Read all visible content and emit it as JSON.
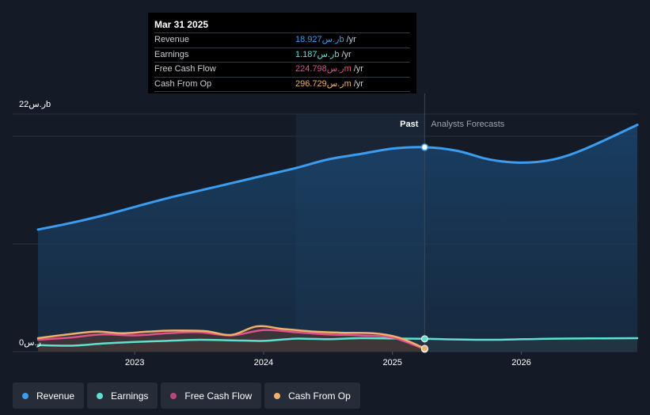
{
  "tooltip": {
    "date": "Mar 31 2025",
    "rows": [
      {
        "label": "Revenue",
        "value": "18.927ر.سb",
        "unit": "/yr",
        "color": "#3b9cf0"
      },
      {
        "label": "Earnings",
        "value": "1.187ر.سb",
        "unit": "/yr",
        "color": "#5fe0d0"
      },
      {
        "label": "Free Cash Flow",
        "value": "224.798ر.سm",
        "unit": "/yr",
        "color": "#e0508e"
      },
      {
        "label": "Cash From Op",
        "value": "296.729ر.سm",
        "unit": "/yr",
        "color": "#f0b06a"
      }
    ]
  },
  "chart_data": {
    "type": "area",
    "y_top_label": "22ر.سb",
    "y_bottom_label": "0ر.س",
    "ylim": [
      0,
      22
    ],
    "xlim": [
      2022.25,
      2026.9
    ],
    "past_label": "Past",
    "forecast_label": "Analysts Forecasts",
    "divider_x": 2025.25,
    "past_region_start": 2024.25,
    "x_ticks": [
      {
        "value": 2023,
        "label": "2023"
      },
      {
        "value": 2024,
        "label": "2024"
      },
      {
        "value": 2025,
        "label": "2025"
      },
      {
        "value": 2026,
        "label": "2026"
      }
    ],
    "series": [
      {
        "name": "Revenue",
        "color": "#3b9cf0",
        "x": [
          2022.25,
          2022.5,
          2022.75,
          2023.0,
          2023.25,
          2023.5,
          2023.75,
          2024.0,
          2024.25,
          2024.5,
          2024.75,
          2025.0,
          2025.25,
          2025.5,
          2025.75,
          2026.0,
          2026.25,
          2026.5,
          2026.9
        ],
        "values": [
          11.3,
          11.9,
          12.6,
          13.4,
          14.2,
          14.9,
          15.6,
          16.3,
          17.0,
          17.8,
          18.3,
          18.8,
          18.93,
          18.6,
          17.8,
          17.5,
          17.8,
          18.8,
          21.0
        ]
      },
      {
        "name": "Earnings",
        "color": "#5fe0d0",
        "x": [
          2022.25,
          2022.5,
          2022.75,
          2023.0,
          2023.25,
          2023.5,
          2023.75,
          2024.0,
          2024.25,
          2024.5,
          2024.75,
          2025.0,
          2025.25,
          2025.75,
          2026.25,
          2026.9
        ],
        "values": [
          0.6,
          0.55,
          0.75,
          0.9,
          1.0,
          1.1,
          1.05,
          1.0,
          1.2,
          1.15,
          1.25,
          1.22,
          1.187,
          1.1,
          1.2,
          1.25
        ]
      },
      {
        "name": "Free Cash Flow",
        "color": "#e0508e",
        "x": [
          2022.25,
          2022.5,
          2022.75,
          2023.0,
          2023.25,
          2023.5,
          2023.75,
          2024.0,
          2024.25,
          2024.5,
          2024.75,
          2025.0,
          2025.25
        ],
        "values": [
          1.1,
          1.3,
          1.6,
          1.5,
          1.7,
          1.8,
          1.5,
          2.0,
          1.8,
          1.6,
          1.5,
          1.3,
          0.225
        ]
      },
      {
        "name": "Cash From Op",
        "color": "#f0b06a",
        "x": [
          2022.25,
          2022.45,
          2022.7,
          2022.9,
          2023.1,
          2023.3,
          2023.55,
          2023.75,
          2023.95,
          2024.15,
          2024.4,
          2024.6,
          2024.85,
          2025.05,
          2025.25
        ],
        "values": [
          1.25,
          1.55,
          1.85,
          1.7,
          1.85,
          1.95,
          1.9,
          1.55,
          2.35,
          2.1,
          1.85,
          1.75,
          1.7,
          1.3,
          0.297
        ]
      }
    ]
  },
  "legend": [
    {
      "label": "Revenue",
      "color": "#3b9cf0"
    },
    {
      "label": "Earnings",
      "color": "#5fe0d0"
    },
    {
      "label": "Free Cash Flow",
      "color": "#c0437c"
    },
    {
      "label": "Cash From Op",
      "color": "#f0b06a"
    }
  ]
}
